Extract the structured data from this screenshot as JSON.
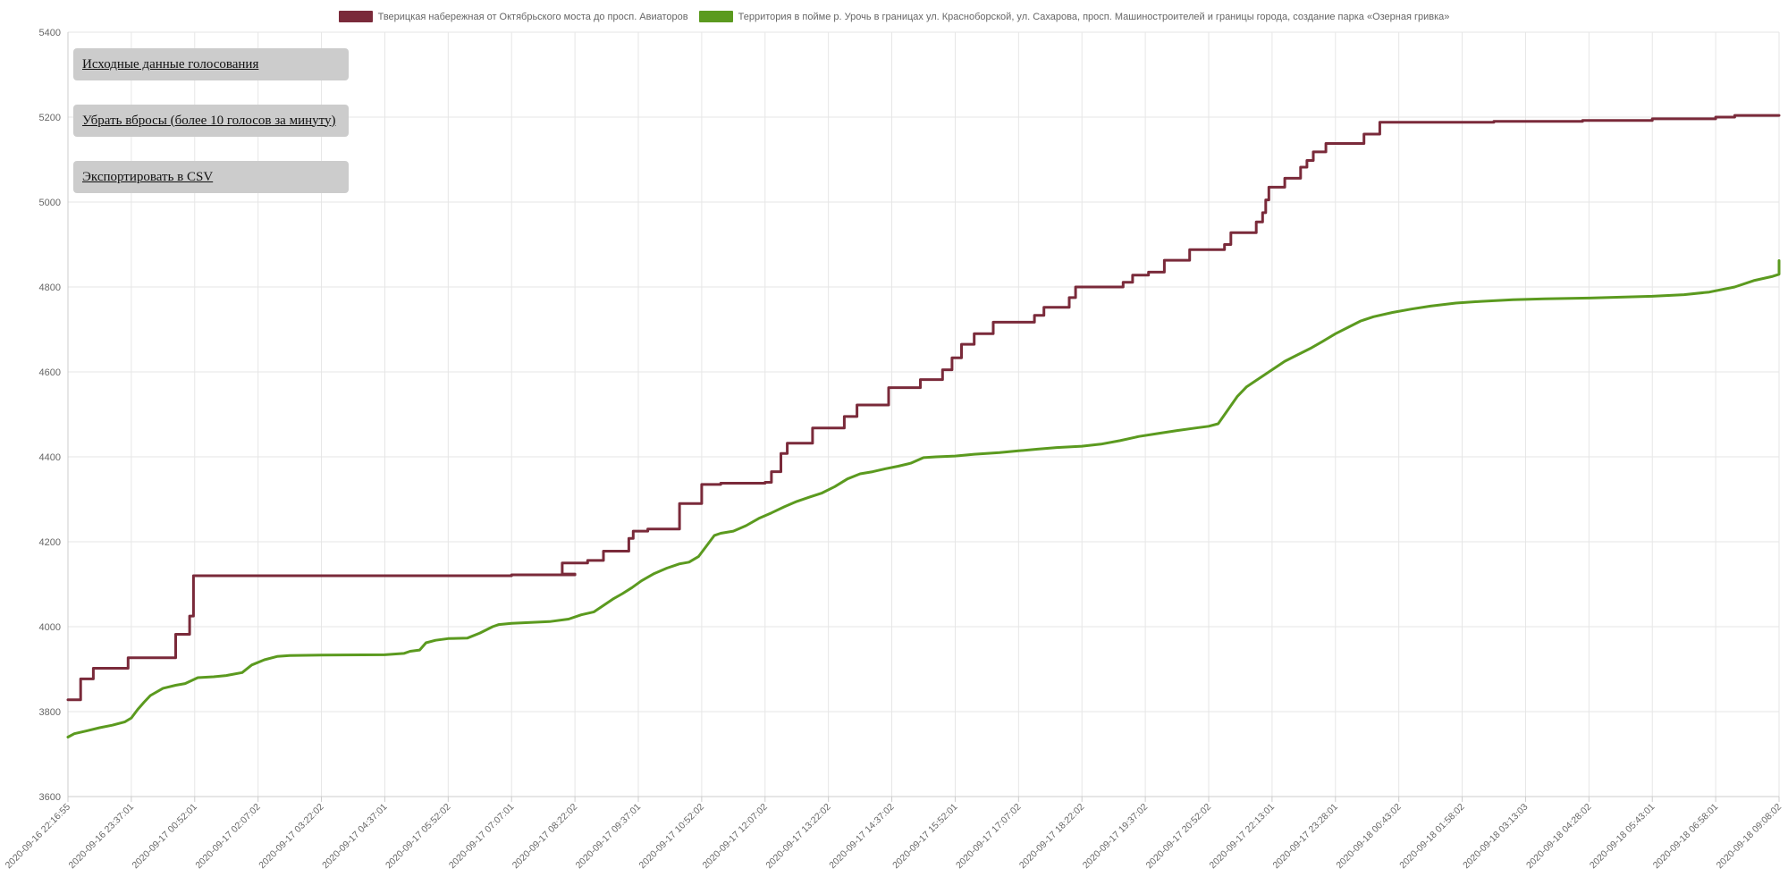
{
  "controls": {
    "raw_data_label": "Исходные данные голосования",
    "remove_spikes_label": "Убрать вбросы (более 10 голосов за минуту)",
    "export_csv_label": "Экспортировать в CSV"
  },
  "chart_data": {
    "type": "line",
    "title": "",
    "xlabel": "",
    "ylabel": "",
    "legend_position": "top-center",
    "grid": true,
    "ylim": [
      3600,
      5400
    ],
    "yticks": [
      3600,
      3800,
      4000,
      4200,
      4400,
      4600,
      4800,
      5000,
      5200,
      5400
    ],
    "xticks": [
      "2020-09-16 22:16:55",
      "2020-09-16 23:37:01",
      "2020-09-17 00:52:01",
      "2020-09-17 02:07:02",
      "2020-09-17 03:22:02",
      "2020-09-17 04:37:01",
      "2020-09-17 05:52:02",
      "2020-09-17 07:07:01",
      "2020-09-17 08:22:02",
      "2020-09-17 09:37:01",
      "2020-09-17 10:52:02",
      "2020-09-17 12:07:02",
      "2020-09-17 13:22:02",
      "2020-09-17 14:37:02",
      "2020-09-17 15:52:01",
      "2020-09-17 17:07:02",
      "2020-09-17 18:22:02",
      "2020-09-17 19:37:02",
      "2020-09-17 20:52:02",
      "2020-09-17 22:13:01",
      "2020-09-17 23:28:01",
      "2020-09-18 00:43:02",
      "2020-09-18 01:58:02",
      "2020-09-18 03:13:03",
      "2020-09-18 04:28:02",
      "2020-09-18 05:43:01",
      "2020-09-18 06:58:01",
      "2020-09-18 09:08:02"
    ],
    "series": [
      {
        "name": "Тверицкая набережная от Октябрьского моста до просп. Авиаторов",
        "color": "#7a2a3a",
        "step": true,
        "points": [
          [
            0,
            3828
          ],
          [
            0.2,
            3828
          ],
          [
            0.2,
            3877
          ],
          [
            0.4,
            3877
          ],
          [
            0.4,
            3902
          ],
          [
            0.95,
            3902
          ],
          [
            0.95,
            3927
          ],
          [
            1.7,
            3927
          ],
          [
            1.7,
            3982
          ],
          [
            1.92,
            3982
          ],
          [
            1.92,
            4025
          ],
          [
            1.98,
            4025
          ],
          [
            1.98,
            4120
          ],
          [
            7.0,
            4120
          ],
          [
            7.0,
            4122
          ],
          [
            8.0,
            4122
          ],
          [
            8.0,
            4124
          ],
          [
            7.8,
            4124
          ],
          [
            7.8,
            4150
          ],
          [
            8.2,
            4150
          ],
          [
            8.2,
            4156
          ],
          [
            8.45,
            4156
          ],
          [
            8.45,
            4178
          ],
          [
            8.85,
            4178
          ],
          [
            8.85,
            4208
          ],
          [
            8.92,
            4208
          ],
          [
            8.92,
            4225
          ],
          [
            9.15,
            4225
          ],
          [
            9.15,
            4230
          ],
          [
            9.65,
            4230
          ],
          [
            9.65,
            4290
          ],
          [
            10.0,
            4290
          ],
          [
            10.0,
            4335
          ],
          [
            10.3,
            4335
          ],
          [
            10.3,
            4338
          ],
          [
            11.0,
            4338
          ],
          [
            11.0,
            4340
          ],
          [
            11.1,
            4340
          ],
          [
            11.1,
            4365
          ],
          [
            11.25,
            4365
          ],
          [
            11.25,
            4408
          ],
          [
            11.35,
            4408
          ],
          [
            11.35,
            4432
          ],
          [
            11.75,
            4432
          ],
          [
            11.75,
            4468
          ],
          [
            12.25,
            4468
          ],
          [
            12.25,
            4495
          ],
          [
            12.45,
            4495
          ],
          [
            12.45,
            4522
          ],
          [
            12.95,
            4522
          ],
          [
            12.95,
            4563
          ],
          [
            13.45,
            4563
          ],
          [
            13.45,
            4582
          ],
          [
            13.8,
            4582
          ],
          [
            13.8,
            4605
          ],
          [
            13.95,
            4605
          ],
          [
            13.95,
            4633
          ],
          [
            14.1,
            4633
          ],
          [
            14.1,
            4665
          ],
          [
            14.3,
            4665
          ],
          [
            14.3,
            4690
          ],
          [
            14.6,
            4690
          ],
          [
            14.6,
            4717
          ],
          [
            15.25,
            4717
          ],
          [
            15.25,
            4733
          ],
          [
            15.4,
            4733
          ],
          [
            15.4,
            4752
          ],
          [
            15.8,
            4752
          ],
          [
            15.8,
            4775
          ],
          [
            15.9,
            4775
          ],
          [
            15.9,
            4800
          ],
          [
            16.65,
            4800
          ],
          [
            16.65,
            4811
          ],
          [
            16.8,
            4811
          ],
          [
            16.8,
            4828
          ],
          [
            17.05,
            4828
          ],
          [
            17.05,
            4835
          ],
          [
            17.3,
            4835
          ],
          [
            17.3,
            4863
          ],
          [
            17.7,
            4863
          ],
          [
            17.7,
            4888
          ],
          [
            18.25,
            4888
          ],
          [
            18.25,
            4900
          ],
          [
            18.35,
            4900
          ],
          [
            18.35,
            4928
          ],
          [
            18.75,
            4928
          ],
          [
            18.75,
            4953
          ],
          [
            18.85,
            4953
          ],
          [
            18.85,
            4975
          ],
          [
            18.9,
            4975
          ],
          [
            18.9,
            5005
          ],
          [
            18.95,
            5005
          ],
          [
            18.95,
            5035
          ],
          [
            19.2,
            5035
          ],
          [
            19.2,
            5056
          ],
          [
            19.45,
            5056
          ],
          [
            19.45,
            5082
          ],
          [
            19.55,
            5082
          ],
          [
            19.55,
            5098
          ],
          [
            19.65,
            5098
          ],
          [
            19.65,
            5118
          ],
          [
            19.85,
            5118
          ],
          [
            19.85,
            5138
          ],
          [
            20.45,
            5138
          ],
          [
            20.45,
            5160
          ],
          [
            20.7,
            5160
          ],
          [
            20.7,
            5188
          ],
          [
            22.5,
            5188
          ],
          [
            22.5,
            5190
          ],
          [
            23.9,
            5190
          ],
          [
            23.9,
            5192
          ],
          [
            25.0,
            5192
          ],
          [
            25.0,
            5196
          ],
          [
            26.0,
            5196
          ],
          [
            26.0,
            5200
          ],
          [
            26.3,
            5200
          ],
          [
            26.3,
            5204
          ],
          [
            27.0,
            5204
          ]
        ]
      },
      {
        "name": "Территория в пойме р. Урочь в границах ул. Красноборской, ул. Сахарова, просп. Машиностроителей и границы города, создание парка «Озерная гривка»",
        "color": "#5b9a1f",
        "step": false,
        "points": [
          [
            0,
            3740
          ],
          [
            0.1,
            3748
          ],
          [
            0.3,
            3755
          ],
          [
            0.5,
            3762
          ],
          [
            0.7,
            3768
          ],
          [
            0.9,
            3776
          ],
          [
            1.0,
            3785
          ],
          [
            1.1,
            3805
          ],
          [
            1.2,
            3822
          ],
          [
            1.3,
            3838
          ],
          [
            1.5,
            3855
          ],
          [
            1.7,
            3862
          ],
          [
            1.85,
            3866
          ],
          [
            2.05,
            3880
          ],
          [
            2.3,
            3882
          ],
          [
            2.5,
            3885
          ],
          [
            2.75,
            3892
          ],
          [
            2.9,
            3910
          ],
          [
            3.1,
            3922
          ],
          [
            3.3,
            3930
          ],
          [
            3.5,
            3932
          ],
          [
            4.0,
            3933
          ],
          [
            5.0,
            3934
          ],
          [
            5.3,
            3937
          ],
          [
            5.4,
            3942
          ],
          [
            5.55,
            3945
          ],
          [
            5.65,
            3962
          ],
          [
            5.8,
            3968
          ],
          [
            6.0,
            3972
          ],
          [
            6.3,
            3973
          ],
          [
            6.5,
            3985
          ],
          [
            6.7,
            4000
          ],
          [
            6.8,
            4005
          ],
          [
            7.0,
            4008
          ],
          [
            7.3,
            4010
          ],
          [
            7.6,
            4012
          ],
          [
            7.9,
            4018
          ],
          [
            8.1,
            4028
          ],
          [
            8.3,
            4035
          ],
          [
            8.45,
            4050
          ],
          [
            8.6,
            4065
          ],
          [
            8.75,
            4078
          ],
          [
            8.9,
            4092
          ],
          [
            9.05,
            4108
          ],
          [
            9.25,
            4125
          ],
          [
            9.45,
            4138
          ],
          [
            9.65,
            4148
          ],
          [
            9.8,
            4152
          ],
          [
            9.95,
            4165
          ],
          [
            10.1,
            4195
          ],
          [
            10.2,
            4215
          ],
          [
            10.3,
            4220
          ],
          [
            10.5,
            4225
          ],
          [
            10.7,
            4238
          ],
          [
            10.9,
            4255
          ],
          [
            11.1,
            4268
          ],
          [
            11.3,
            4282
          ],
          [
            11.5,
            4295
          ],
          [
            11.7,
            4305
          ],
          [
            11.9,
            4315
          ],
          [
            12.1,
            4330
          ],
          [
            12.3,
            4348
          ],
          [
            12.5,
            4360
          ],
          [
            12.7,
            4365
          ],
          [
            12.9,
            4372
          ],
          [
            13.1,
            4378
          ],
          [
            13.3,
            4385
          ],
          [
            13.5,
            4398
          ],
          [
            13.7,
            4400
          ],
          [
            14.0,
            4402
          ],
          [
            14.3,
            4406
          ],
          [
            14.7,
            4410
          ],
          [
            15.0,
            4414
          ],
          [
            15.3,
            4418
          ],
          [
            15.6,
            4422
          ],
          [
            16.0,
            4425
          ],
          [
            16.3,
            4430
          ],
          [
            16.6,
            4438
          ],
          [
            16.9,
            4448
          ],
          [
            17.2,
            4455
          ],
          [
            17.5,
            4462
          ],
          [
            17.8,
            4468
          ],
          [
            18.0,
            4472
          ],
          [
            18.15,
            4478
          ],
          [
            18.3,
            4510
          ],
          [
            18.45,
            4542
          ],
          [
            18.6,
            4565
          ],
          [
            18.8,
            4585
          ],
          [
            19.0,
            4605
          ],
          [
            19.2,
            4625
          ],
          [
            19.4,
            4640
          ],
          [
            19.6,
            4655
          ],
          [
            19.8,
            4672
          ],
          [
            20.0,
            4690
          ],
          [
            20.2,
            4705
          ],
          [
            20.4,
            4720
          ],
          [
            20.6,
            4730
          ],
          [
            20.9,
            4740
          ],
          [
            21.2,
            4748
          ],
          [
            21.5,
            4755
          ],
          [
            21.9,
            4762
          ],
          [
            22.3,
            4766
          ],
          [
            22.8,
            4770
          ],
          [
            23.3,
            4772
          ],
          [
            24.0,
            4774
          ],
          [
            24.5,
            4776
          ],
          [
            25.0,
            4778
          ],
          [
            25.5,
            4782
          ],
          [
            25.9,
            4788
          ],
          [
            26.3,
            4800
          ],
          [
            26.6,
            4815
          ],
          [
            26.9,
            4825
          ],
          [
            27.2,
            4830
          ],
          [
            27.5,
            4838
          ],
          [
            27.8,
            4845
          ],
          [
            28.0,
            4852
          ],
          [
            28.3,
            4858
          ],
          [
            28.5,
            4862
          ]
        ]
      }
    ]
  }
}
